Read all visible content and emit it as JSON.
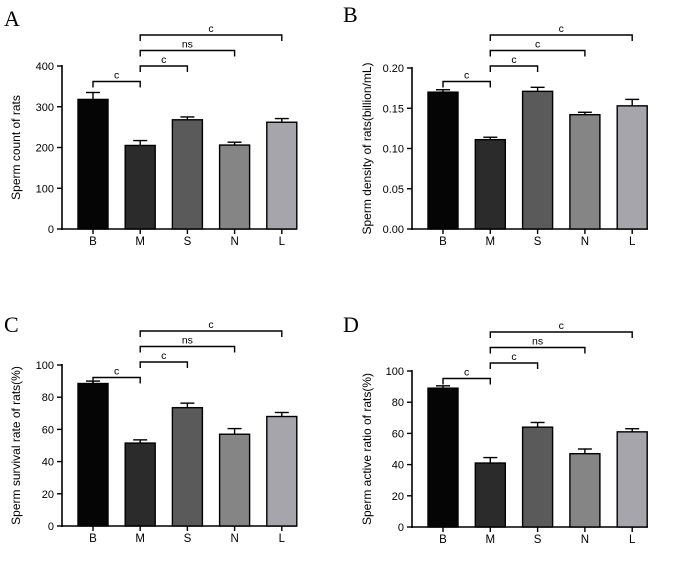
{
  "chart_data": [
    {
      "panel": "A",
      "type": "bar",
      "ylabel": "Sperm count of rats",
      "categories": [
        "B",
        "M",
        "S",
        "N",
        "L"
      ],
      "values": [
        318,
        205,
        268,
        206,
        262
      ],
      "errors": [
        17,
        12,
        7,
        7,
        9
      ],
      "colors": [
        "#050505",
        "#2b2b2b",
        "#5a5a5a",
        "#858585",
        "#a5a5ab"
      ],
      "ylim": [
        0,
        400
      ],
      "yticks": [
        0,
        100,
        200,
        300,
        400
      ],
      "ytick_labels": [
        "0",
        "100",
        "200",
        "300",
        "400"
      ],
      "brackets": [
        {
          "from": "B",
          "to": "M",
          "label": "c"
        },
        {
          "from": "M",
          "to": "S",
          "label": "c"
        },
        {
          "from": "M",
          "to": "N",
          "label": "ns"
        },
        {
          "from": "M",
          "to": "L",
          "label": "c"
        }
      ]
    },
    {
      "panel": "B",
      "type": "bar",
      "ylabel": "Sperm density of rats(billion/mL)",
      "categories": [
        "B",
        "M",
        "S",
        "N",
        "L"
      ],
      "values": [
        0.17,
        0.111,
        0.171,
        0.142,
        0.153
      ],
      "errors": [
        0.003,
        0.003,
        0.005,
        0.003,
        0.008
      ],
      "colors": [
        "#050505",
        "#2b2b2b",
        "#5a5a5a",
        "#858585",
        "#a5a5ab"
      ],
      "ylim": [
        0,
        0.2
      ],
      "yticks": [
        0,
        0.05,
        0.1,
        0.15,
        0.2
      ],
      "ytick_labels": [
        "0.00",
        "0.05",
        "0.10",
        "0.15",
        "0.20"
      ],
      "brackets": [
        {
          "from": "B",
          "to": "M",
          "label": "c"
        },
        {
          "from": "M",
          "to": "S",
          "label": "c"
        },
        {
          "from": "M",
          "to": "N",
          "label": "c"
        },
        {
          "from": "M",
          "to": "L",
          "label": "c"
        }
      ]
    },
    {
      "panel": "C",
      "type": "bar",
      "ylabel": "Sperm survival rate of rats(%)",
      "categories": [
        "B",
        "M",
        "S",
        "N",
        "L"
      ],
      "values": [
        88.5,
        51.5,
        73.5,
        57,
        68
      ],
      "errors": [
        1.5,
        2,
        2.8,
        3.5,
        2.5
      ],
      "colors": [
        "#050505",
        "#2b2b2b",
        "#5a5a5a",
        "#858585",
        "#a5a5ab"
      ],
      "ylim": [
        0,
        100
      ],
      "yticks": [
        0,
        20,
        40,
        60,
        80,
        100
      ],
      "ytick_labels": [
        "0",
        "20",
        "40",
        "60",
        "80",
        "100"
      ],
      "brackets": [
        {
          "from": "B",
          "to": "M",
          "label": "c"
        },
        {
          "from": "M",
          "to": "S",
          "label": "c"
        },
        {
          "from": "M",
          "to": "N",
          "label": "ns"
        },
        {
          "from": "M",
          "to": "L",
          "label": "c"
        }
      ]
    },
    {
      "panel": "D",
      "type": "bar",
      "ylabel": "Sperm active ratio of rats(%)",
      "categories": [
        "B",
        "M",
        "S",
        "N",
        "L"
      ],
      "values": [
        89,
        41,
        64,
        47,
        61
      ],
      "errors": [
        1.5,
        3.5,
        3,
        3,
        2
      ],
      "colors": [
        "#050505",
        "#2b2b2b",
        "#5a5a5a",
        "#858585",
        "#a5a5ab"
      ],
      "ylim": [
        0,
        100
      ],
      "yticks": [
        0,
        20,
        40,
        60,
        80,
        100
      ],
      "ytick_labels": [
        "0",
        "20",
        "40",
        "60",
        "80",
        "100"
      ],
      "brackets": [
        {
          "from": "B",
          "to": "M",
          "label": "c"
        },
        {
          "from": "M",
          "to": "S",
          "label": "c"
        },
        {
          "from": "M",
          "to": "N",
          "label": "ns"
        },
        {
          "from": "M",
          "to": "L",
          "label": "c"
        }
      ]
    }
  ]
}
